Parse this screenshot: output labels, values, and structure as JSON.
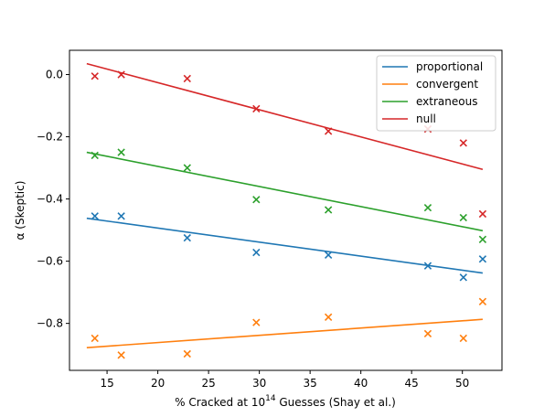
{
  "chart_data": {
    "type": "scatter",
    "xlabel_main": "% Cracked at 10",
    "xlabel_sup": "14",
    "xlabel_rest": " Guesses (Shay et al.)",
    "ylabel": "α (Skeptic)",
    "xlim": [
      11.3,
      53.9
    ],
    "ylim": [
      -0.951,
      0.078
    ],
    "x_ticks": [
      15,
      20,
      25,
      30,
      35,
      40,
      45,
      50
    ],
    "y_ticks": [
      0.0,
      -0.2,
      -0.4,
      -0.6,
      -0.8
    ],
    "legend_position": "top-right",
    "grid": false,
    "x": [
      13.8,
      16.4,
      22.9,
      29.7,
      36.8,
      46.6,
      50.1,
      52.0
    ],
    "series": [
      {
        "name": "proportional",
        "color": "#1f77b4",
        "values": [
          -0.455,
          -0.455,
          -0.525,
          -0.572,
          -0.58,
          -0.615,
          -0.652,
          -0.593
        ],
        "fit": [
          [
            13.0,
            -0.462
          ],
          [
            52.0,
            -0.638
          ]
        ]
      },
      {
        "name": "convergent",
        "color": "#ff7f0e",
        "values": [
          -0.848,
          -0.902,
          -0.898,
          -0.797,
          -0.78,
          -0.833,
          -0.848,
          -0.73
        ],
        "fit": [
          [
            13.0,
            -0.878
          ],
          [
            52.0,
            -0.787
          ]
        ]
      },
      {
        "name": "extraneous",
        "color": "#2ca02c",
        "values": [
          -0.26,
          -0.25,
          -0.3,
          -0.402,
          -0.435,
          -0.428,
          -0.46,
          -0.53
        ],
        "fit": [
          [
            13.0,
            -0.25
          ],
          [
            52.0,
            -0.502
          ]
        ]
      },
      {
        "name": "null",
        "color": "#d62728",
        "values": [
          -0.005,
          0.0,
          -0.013,
          -0.11,
          -0.182,
          -0.175,
          -0.22,
          -0.448
        ],
        "fit": [
          [
            13.0,
            0.035
          ],
          [
            52.0,
            -0.305
          ]
        ]
      }
    ]
  }
}
